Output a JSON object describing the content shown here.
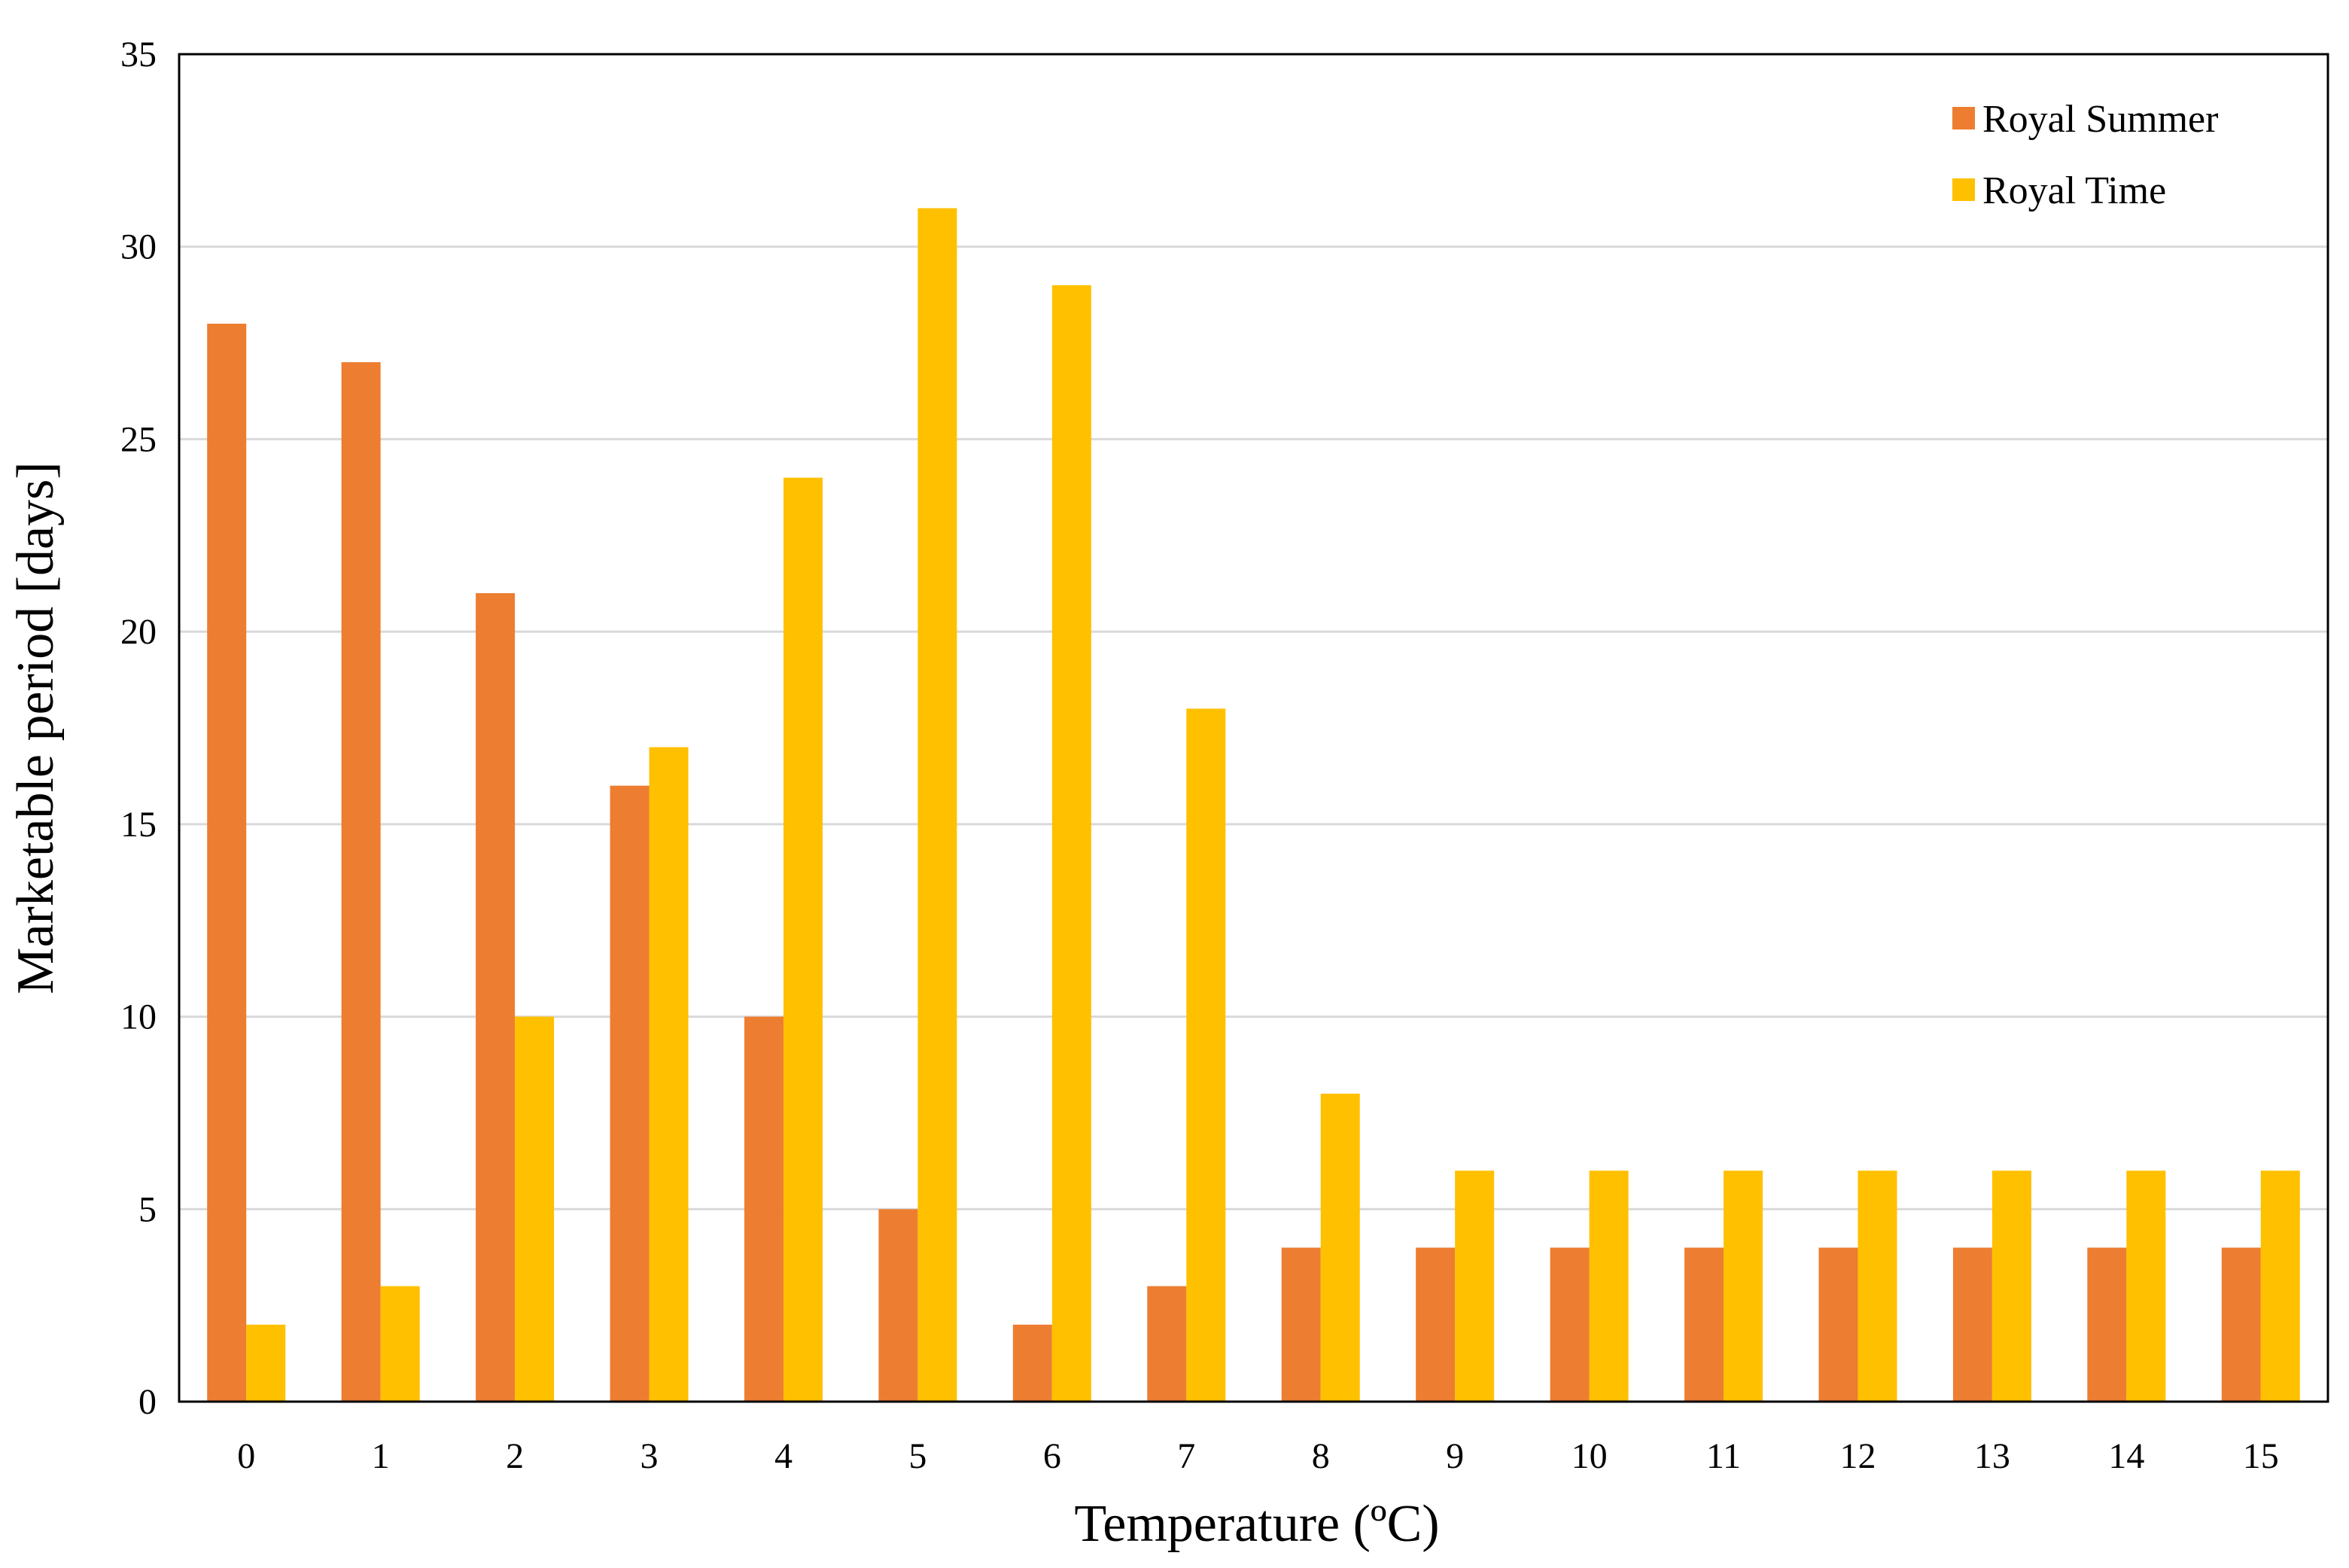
{
  "chart_data": {
    "type": "bar",
    "title": "",
    "xlabel": "Temperature (ºC)",
    "ylabel": "Marketable period [days]",
    "ylim": [
      0,
      35
    ],
    "yticks": [
      0,
      5,
      10,
      15,
      20,
      25,
      30,
      35
    ],
    "grid": true,
    "legend_position": "top-right",
    "categories": [
      "0",
      "1",
      "2",
      "3",
      "4",
      "5",
      "6",
      "7",
      "8",
      "9",
      "10",
      "11",
      "12",
      "13",
      "14",
      "15"
    ],
    "series": [
      {
        "name": "Royal Summer",
        "color": "#ED7D31",
        "values": [
          28,
          27,
          21,
          16,
          10,
          5,
          2,
          3,
          4,
          4,
          4,
          4,
          4,
          4,
          4,
          4
        ]
      },
      {
        "name": "Royal Time",
        "color": "#FFC000",
        "values": [
          2,
          3,
          10,
          17,
          24,
          31,
          29,
          18,
          8,
          6,
          6,
          6,
          6,
          6,
          6,
          6
        ]
      }
    ]
  }
}
